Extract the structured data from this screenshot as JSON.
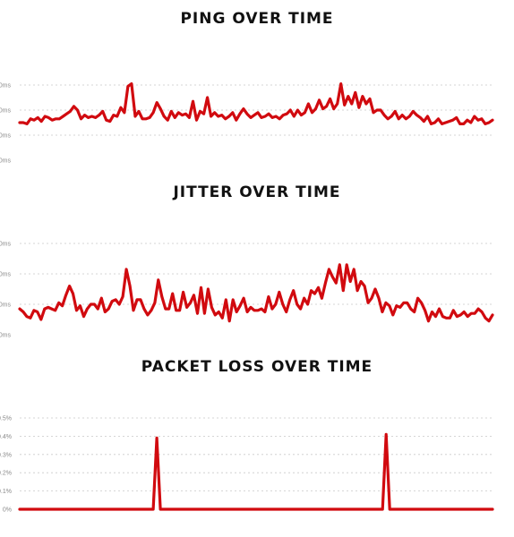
{
  "theme": {
    "line_color": "#d10a0f",
    "grid_color": "#c9c9c9",
    "tick_color": "#8a8a8a",
    "title_color": "#111111"
  },
  "chart_data": [
    {
      "type": "line",
      "title": "PING OVER TIME",
      "xlabel": "",
      "ylabel": "",
      "yticks": [
        "0ms",
        "0ms",
        "0ms",
        "0ms"
      ],
      "ylim": [
        0,
        3
      ],
      "grid": true,
      "series": [
        {
          "values": [
            1.5,
            1.5,
            1.45,
            1.65,
            1.6,
            1.7,
            1.55,
            1.75,
            1.7,
            1.6,
            1.65,
            1.65,
            1.75,
            1.85,
            1.95,
            2.15,
            2.0,
            1.65,
            1.8,
            1.7,
            1.75,
            1.7,
            1.8,
            1.95,
            1.6,
            1.55,
            1.8,
            1.75,
            2.1,
            1.9,
            2.95,
            3.05,
            1.75,
            1.95,
            1.65,
            1.65,
            1.7,
            1.9,
            2.3,
            2.05,
            1.75,
            1.6,
            1.95,
            1.7,
            1.9,
            1.8,
            1.85,
            1.7,
            2.35,
            1.6,
            1.95,
            1.85,
            2.5,
            1.75,
            1.9,
            1.75,
            1.8,
            1.65,
            1.75,
            1.9,
            1.6,
            1.85,
            2.05,
            1.85,
            1.7,
            1.8,
            1.9,
            1.7,
            1.75,
            1.85,
            1.7,
            1.75,
            1.65,
            1.8,
            1.85,
            2.0,
            1.75,
            2.0,
            1.8,
            1.9,
            2.25,
            1.9,
            2.05,
            2.4,
            2.05,
            2.15,
            2.45,
            2.05,
            2.25,
            3.05,
            2.2,
            2.55,
            2.25,
            2.7,
            2.1,
            2.55,
            2.25,
            2.45,
            1.9,
            2.0,
            2.0,
            1.8,
            1.65,
            1.75,
            1.95,
            1.65,
            1.8,
            1.65,
            1.75,
            1.95,
            1.8,
            1.7,
            1.55,
            1.75,
            1.45,
            1.5,
            1.65,
            1.45,
            1.5,
            1.55,
            1.6,
            1.7,
            1.45,
            1.45,
            1.6,
            1.5,
            1.75,
            1.6,
            1.65,
            1.45,
            1.5,
            1.6
          ]
        }
      ]
    },
    {
      "type": "line",
      "title": "JITTER OVER TIME",
      "xlabel": "",
      "ylabel": "",
      "yticks": [
        "0ms",
        "0ms",
        "0ms",
        "0ms"
      ],
      "ylim": [
        0,
        3
      ],
      "grid": true,
      "series": [
        {
          "values": [
            0.85,
            0.75,
            0.6,
            0.55,
            0.8,
            0.75,
            0.5,
            0.85,
            0.9,
            0.85,
            0.8,
            1.05,
            0.95,
            1.3,
            1.6,
            1.35,
            0.8,
            0.95,
            0.6,
            0.85,
            1.0,
            1.0,
            0.85,
            1.2,
            0.75,
            0.85,
            1.1,
            1.15,
            1.0,
            1.25,
            2.15,
            1.6,
            0.8,
            1.15,
            1.15,
            0.85,
            0.65,
            0.8,
            1.05,
            1.8,
            1.25,
            0.85,
            0.85,
            1.35,
            0.8,
            0.8,
            1.4,
            0.9,
            1.05,
            1.3,
            0.7,
            1.55,
            0.7,
            1.5,
            0.9,
            0.65,
            0.75,
            0.55,
            1.15,
            0.45,
            1.15,
            0.75,
            0.95,
            1.2,
            0.75,
            0.9,
            0.8,
            0.8,
            0.85,
            0.75,
            1.25,
            0.85,
            1.0,
            1.4,
            1.0,
            0.75,
            1.15,
            1.45,
            1.0,
            0.85,
            1.2,
            1.0,
            1.45,
            1.35,
            1.55,
            1.2,
            1.7,
            2.15,
            1.9,
            1.7,
            2.3,
            1.45,
            2.3,
            1.75,
            2.15,
            1.45,
            1.75,
            1.6,
            1.05,
            1.2,
            1.5,
            1.2,
            0.75,
            1.05,
            0.95,
            0.65,
            0.95,
            0.9,
            1.05,
            1.05,
            0.85,
            0.75,
            1.2,
            1.05,
            0.8,
            0.45,
            0.75,
            0.6,
            0.85,
            0.6,
            0.55,
            0.55,
            0.8,
            0.6,
            0.65,
            0.75,
            0.6,
            0.7,
            0.7,
            0.85,
            0.75,
            0.55,
            0.45,
            0.65
          ]
        }
      ]
    },
    {
      "type": "line",
      "title": "PACKET LOSS OVER TIME",
      "xlabel": "",
      "ylabel": "",
      "yticks": [
        "0%",
        "0.1%",
        "0.2%",
        "0.3%",
        "0.4%",
        "0.5%"
      ],
      "ylim": [
        0,
        0.5
      ],
      "grid": true,
      "series": [
        {
          "values": [
            0,
            0,
            0,
            0,
            0,
            0,
            0,
            0,
            0,
            0,
            0,
            0,
            0,
            0,
            0,
            0,
            0,
            0,
            0,
            0,
            0,
            0,
            0,
            0,
            0,
            0,
            0,
            0,
            0,
            0,
            0,
            0,
            0,
            0,
            0,
            0,
            0,
            0,
            0,
            0,
            0,
            0,
            0,
            0,
            0,
            0,
            0,
            0,
            0,
            0,
            0,
            0,
            0,
            0,
            0,
            0,
            0,
            0,
            0,
            0,
            0,
            0,
            0,
            0,
            0,
            0,
            0,
            0,
            0,
            0,
            0,
            0,
            0,
            0,
            0,
            0,
            0,
            0,
            0,
            0,
            0,
            0,
            0,
            0,
            0,
            0,
            0,
            0,
            0,
            0,
            0,
            0,
            0,
            0,
            0,
            0,
            0,
            0,
            0,
            0,
            0,
            0,
            0,
            0,
            0,
            0,
            0,
            0,
            0,
            0,
            0,
            0,
            0,
            0,
            0,
            0,
            0,
            0,
            0,
            0,
            0,
            0,
            0,
            0,
            0,
            0,
            0,
            0,
            0,
            0,
            0
          ]
        }
      ],
      "spikes": [
        {
          "at": 0.29,
          "value": 0.39
        },
        {
          "at": 0.775,
          "value": 0.41
        }
      ]
    }
  ]
}
